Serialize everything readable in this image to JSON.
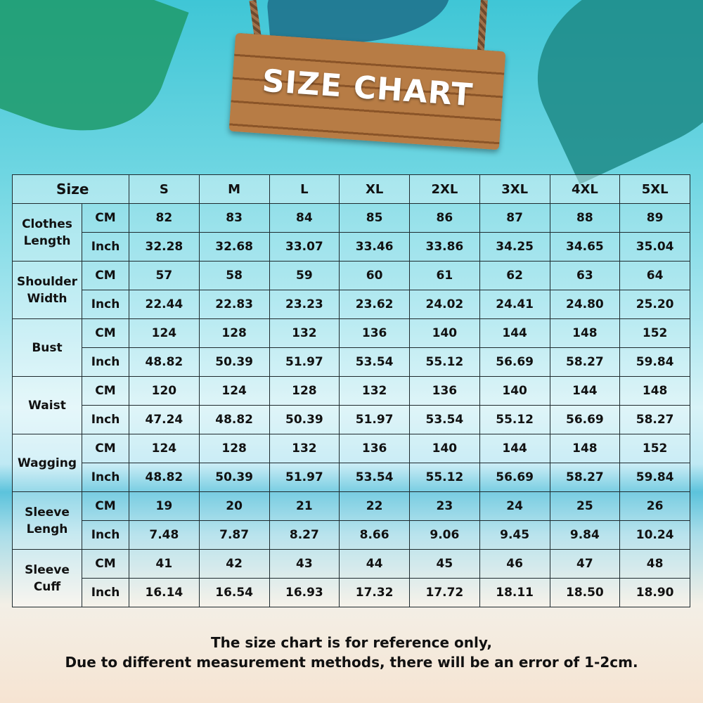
{
  "title": "SIZE CHART",
  "header": {
    "size_label": "Size",
    "sizes": [
      "S",
      "M",
      "L",
      "XL",
      "2XL",
      "3XL",
      "4XL",
      "5XL"
    ]
  },
  "units": {
    "cm": "CM",
    "inch": "Inch"
  },
  "rows": [
    {
      "label": "Clothes Length",
      "cm": [
        "82",
        "83",
        "84",
        "85",
        "86",
        "87",
        "88",
        "89"
      ],
      "inch": [
        "32.28",
        "32.68",
        "33.07",
        "33.46",
        "33.86",
        "34.25",
        "34.65",
        "35.04"
      ]
    },
    {
      "label": "Shoulder Width",
      "cm": [
        "57",
        "58",
        "59",
        "60",
        "61",
        "62",
        "63",
        "64"
      ],
      "inch": [
        "22.44",
        "22.83",
        "23.23",
        "23.62",
        "24.02",
        "24.41",
        "24.80",
        "25.20"
      ]
    },
    {
      "label": "Bust",
      "cm": [
        "124",
        "128",
        "132",
        "136",
        "140",
        "144",
        "148",
        "152"
      ],
      "inch": [
        "48.82",
        "50.39",
        "51.97",
        "53.54",
        "55.12",
        "56.69",
        "58.27",
        "59.84"
      ]
    },
    {
      "label": "Waist",
      "cm": [
        "120",
        "124",
        "128",
        "132",
        "136",
        "140",
        "144",
        "148"
      ],
      "inch": [
        "47.24",
        "48.82",
        "50.39",
        "51.97",
        "53.54",
        "55.12",
        "56.69",
        "58.27"
      ]
    },
    {
      "label": "Wagging",
      "cm": [
        "124",
        "128",
        "132",
        "136",
        "140",
        "144",
        "148",
        "152"
      ],
      "inch": [
        "48.82",
        "50.39",
        "51.97",
        "53.54",
        "55.12",
        "56.69",
        "58.27",
        "59.84"
      ]
    },
    {
      "label": "Sleeve Lengh",
      "cm": [
        "19",
        "20",
        "21",
        "22",
        "23",
        "24",
        "25",
        "26"
      ],
      "inch": [
        "7.48",
        "7.87",
        "8.27",
        "8.66",
        "9.06",
        "9.45",
        "9.84",
        "10.24"
      ]
    },
    {
      "label": "Sleeve Cuff",
      "cm": [
        "41",
        "42",
        "43",
        "44",
        "45",
        "46",
        "47",
        "48"
      ],
      "inch": [
        "16.14",
        "16.54",
        "16.93",
        "17.32",
        "17.72",
        "18.11",
        "18.50",
        "18.90"
      ]
    }
  ],
  "note": {
    "line1": "The size chart is for reference only,",
    "line2": "Due to different measurement methods, there will be an error of 1-2cm."
  }
}
